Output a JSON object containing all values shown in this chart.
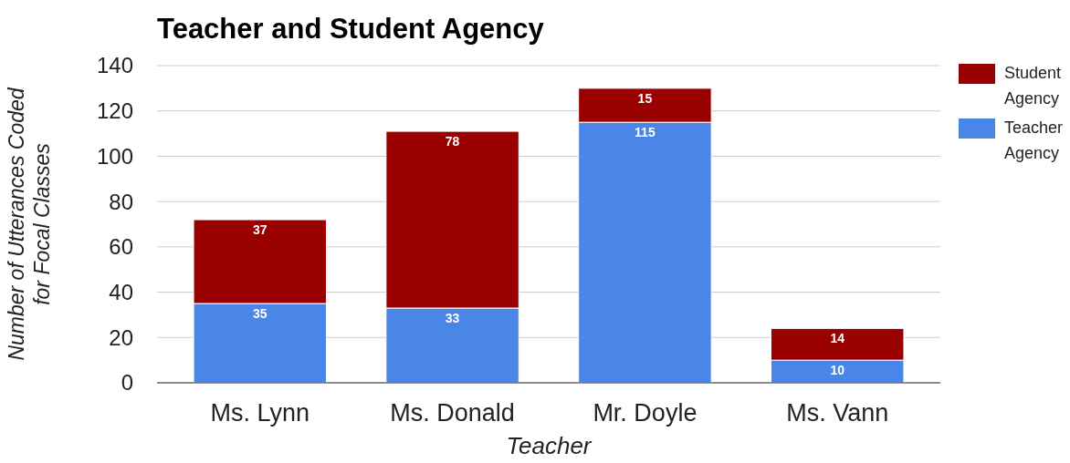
{
  "chart_data": {
    "type": "bar",
    "title": "Teacher and Student Agency",
    "xlabel": "Teacher",
    "ylabel": "Number of Utterances Coded for Focal Classes",
    "categories": [
      "Ms. Lynn",
      "Ms. Donald",
      "Mr. Doyle",
      "Ms. Vann"
    ],
    "series": [
      {
        "name": "Teacher Agency",
        "color": "#4a86e8",
        "values": [
          35,
          33,
          115,
          10
        ]
      },
      {
        "name": "Student Agency",
        "color": "#990000",
        "values": [
          37,
          78,
          15,
          14
        ]
      }
    ],
    "stacked": true,
    "ylim": [
      0,
      140
    ],
    "yticks": [
      0,
      20,
      40,
      60,
      80,
      100,
      120,
      140
    ],
    "grid": "y",
    "legend": "top right",
    "data_labels": true
  }
}
